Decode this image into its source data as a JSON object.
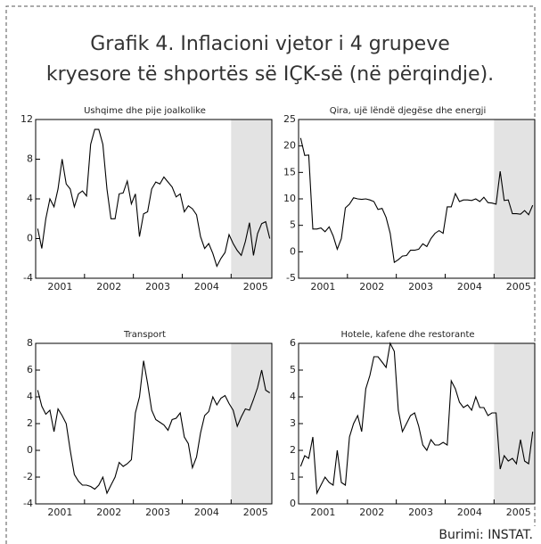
{
  "title_lines": [
    "Grafik 4. Inflacioni vjetor i 4 grupeve",
    "kryesore të shportës së IÇK-së (në përqindje)."
  ],
  "source": "Burimi: INSTAT.",
  "chart_data": [
    {
      "type": "line",
      "title": "Ushqime dhe pije joalkolike",
      "color": "#000",
      "shade_start": 48,
      "categories": [
        null,
        null,
        null,
        null,
        null,
        null,
        "2001",
        null,
        null,
        null,
        null,
        null,
        null,
        null,
        null,
        null,
        null,
        null,
        "2002",
        null,
        null,
        null,
        null,
        null,
        null,
        null,
        null,
        null,
        null,
        null,
        "2003",
        null,
        null,
        null,
        null,
        null,
        null,
        null,
        null,
        null,
        null,
        null,
        "2004",
        null,
        null,
        null,
        null,
        null,
        null,
        null,
        null,
        null,
        null,
        null,
        "2005",
        null,
        null,
        null
      ],
      "values": [
        1,
        -1,
        2,
        4,
        3.2,
        5,
        8,
        5.5,
        5,
        3.2,
        4.5,
        4.8,
        4.3,
        9.5,
        11,
        11,
        9.5,
        5,
        2,
        2,
        4.5,
        4.6,
        5.8,
        3.5,
        4.5,
        0.2,
        2.5,
        2.7,
        5,
        5.7,
        5.5,
        6.2,
        5.7,
        5.2,
        4.2,
        4.5,
        2.7,
        3.3,
        3,
        2.4,
        0.2,
        -1,
        -0.5,
        -1.5,
        -2.8,
        -2,
        -1.4,
        0.4,
        -0.5,
        -1.2,
        -1.7,
        -0.3,
        1.6,
        -1.7,
        0.5,
        1.5,
        1.7,
        0
      ],
      "ylim": [
        -4,
        12
      ],
      "yticks": [
        -4,
        0,
        4,
        8,
        12
      ]
    },
    {
      "type": "line",
      "title": "Qira, ujë lëndë djegëse dhe energji",
      "color": "#000",
      "shade_start": 48,
      "categories": [
        null,
        null,
        null,
        null,
        null,
        null,
        "2001",
        null,
        null,
        null,
        null,
        null,
        null,
        null,
        null,
        null,
        null,
        null,
        "2002",
        null,
        null,
        null,
        null,
        null,
        null,
        null,
        null,
        null,
        null,
        null,
        "2003",
        null,
        null,
        null,
        null,
        null,
        null,
        null,
        null,
        null,
        null,
        null,
        "2004",
        null,
        null,
        null,
        null,
        null,
        null,
        null,
        null,
        null,
        null,
        null,
        "2005",
        null,
        null,
        null
      ],
      "values": [
        21.5,
        18.2,
        18.3,
        4.3,
        4.3,
        4.5,
        3.8,
        4.7,
        3,
        0.5,
        2.5,
        8.3,
        9,
        10.2,
        10,
        9.9,
        10,
        9.8,
        9.5,
        8,
        8.2,
        6.5,
        3.5,
        -2,
        -1.5,
        -0.8,
        -0.7,
        0.3,
        0.3,
        0.5,
        1.5,
        1,
        2.5,
        3.5,
        4,
        3.5,
        8.5,
        8.5,
        11,
        9.5,
        9.8,
        9.8,
        9.7,
        10,
        9.5,
        10.3,
        9.3,
        9.2,
        9,
        15.2,
        9.7,
        9.8,
        7.2,
        7.2,
        7.1,
        7.8,
        7,
        8.8
      ],
      "ylim": [
        -5,
        25
      ],
      "yticks": [
        -5,
        0,
        5,
        10,
        15,
        20,
        25
      ]
    },
    {
      "type": "line",
      "title": "Transport",
      "color": "#000",
      "shade_start": 48,
      "categories": [
        null,
        null,
        null,
        null,
        null,
        null,
        "2001",
        null,
        null,
        null,
        null,
        null,
        null,
        null,
        null,
        null,
        null,
        null,
        "2002",
        null,
        null,
        null,
        null,
        null,
        null,
        null,
        null,
        null,
        null,
        null,
        "2003",
        null,
        null,
        null,
        null,
        null,
        null,
        null,
        null,
        null,
        null,
        null,
        "2004",
        null,
        null,
        null,
        null,
        null,
        null,
        null,
        null,
        null,
        null,
        null,
        "2005",
        null,
        null,
        null
      ],
      "values": [
        4.5,
        3.3,
        2.7,
        3,
        1.4,
        3.1,
        2.6,
        2,
        0,
        -1.8,
        -2.3,
        -2.6,
        -2.6,
        -2.7,
        -2.9,
        -2.6,
        -2,
        -3.2,
        -2.6,
        -2,
        -0.9,
        -1.2,
        -1,
        -0.7,
        2.8,
        4,
        6.7,
        5,
        3,
        2.3,
        2.1,
        1.9,
        1.5,
        2.3,
        2.4,
        2.8,
        1,
        0.5,
        -1.3,
        -0.5,
        1.3,
        2.6,
        2.9,
        4,
        3.4,
        3.9,
        4.1,
        3.5,
        3,
        1.8,
        2.5,
        3.1,
        3,
        3.8,
        4.7,
        6,
        4.5,
        4.3
      ],
      "ylim": [
        -4,
        8
      ],
      "yticks": [
        -4,
        -2,
        0,
        2,
        4,
        6,
        8
      ]
    },
    {
      "type": "line",
      "title": "Hotele, kafene dhe restorante",
      "color": "#000",
      "shade_start": 48,
      "categories": [
        null,
        null,
        null,
        null,
        null,
        null,
        "2001",
        null,
        null,
        null,
        null,
        null,
        null,
        null,
        null,
        null,
        null,
        null,
        "2002",
        null,
        null,
        null,
        null,
        null,
        null,
        null,
        null,
        null,
        null,
        null,
        "2003",
        null,
        null,
        null,
        null,
        null,
        null,
        null,
        null,
        null,
        null,
        null,
        "2004",
        null,
        null,
        null,
        null,
        null,
        null,
        null,
        null,
        null,
        null,
        null,
        "2005",
        null,
        null,
        null
      ],
      "values": [
        1.4,
        1.8,
        1.7,
        2.5,
        0.4,
        0.7,
        1,
        0.8,
        0.7,
        2,
        0.8,
        0.7,
        2.5,
        3,
        3.3,
        2.7,
        4.3,
        4.8,
        5.5,
        5.5,
        5.3,
        5.1,
        6,
        5.7,
        3.5,
        2.7,
        3,
        3.3,
        3.4,
        2.9,
        2.2,
        2,
        2.4,
        2.2,
        2.2,
        2.3,
        2.2,
        4.6,
        4.3,
        3.8,
        3.6,
        3.7,
        3.5,
        4,
        3.6,
        3.6,
        3.3,
        3.4,
        3.4,
        1.3,
        1.8,
        1.6,
        1.7,
        1.5,
        2.4,
        1.6,
        1.5,
        2.7
      ],
      "ylim": [
        0,
        6
      ],
      "yticks": [
        0,
        1,
        2,
        3,
        4,
        5,
        6
      ]
    }
  ]
}
